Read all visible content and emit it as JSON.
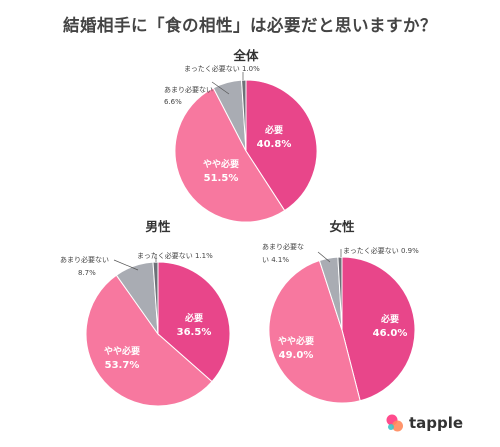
{
  "title": "結婚相手に「食の相性」は必要だと思いますか？",
  "logo": {
    "text": "tapple",
    "colors": [
      "#ff4b8d",
      "#ff8a5c",
      "#3dc3c9"
    ]
  },
  "colors": {
    "hitsuyou": "#e8468a",
    "yaya": "#f7789f",
    "amari": "#a9acb3",
    "mattaku": "#6e7178"
  },
  "chart_data": [
    {
      "type": "pie",
      "title": "全体",
      "labels": [
        "必要",
        "やや必要",
        "あまり必要ない",
        "まったく必要ない"
      ],
      "values": [
        40.8,
        51.5,
        6.6,
        1.0
      ]
    },
    {
      "type": "pie",
      "title": "男性",
      "labels": [
        "必要",
        "やや必要",
        "あまり必要ない",
        "まったく必要ない"
      ],
      "values": [
        36.5,
        53.7,
        8.7,
        1.1
      ]
    },
    {
      "type": "pie",
      "title": "女性",
      "labels": [
        "必要",
        "やや必要",
        "あまり必要ない",
        "まったく必要ない"
      ],
      "values": [
        46.0,
        49.0,
        4.1,
        0.9
      ]
    }
  ]
}
